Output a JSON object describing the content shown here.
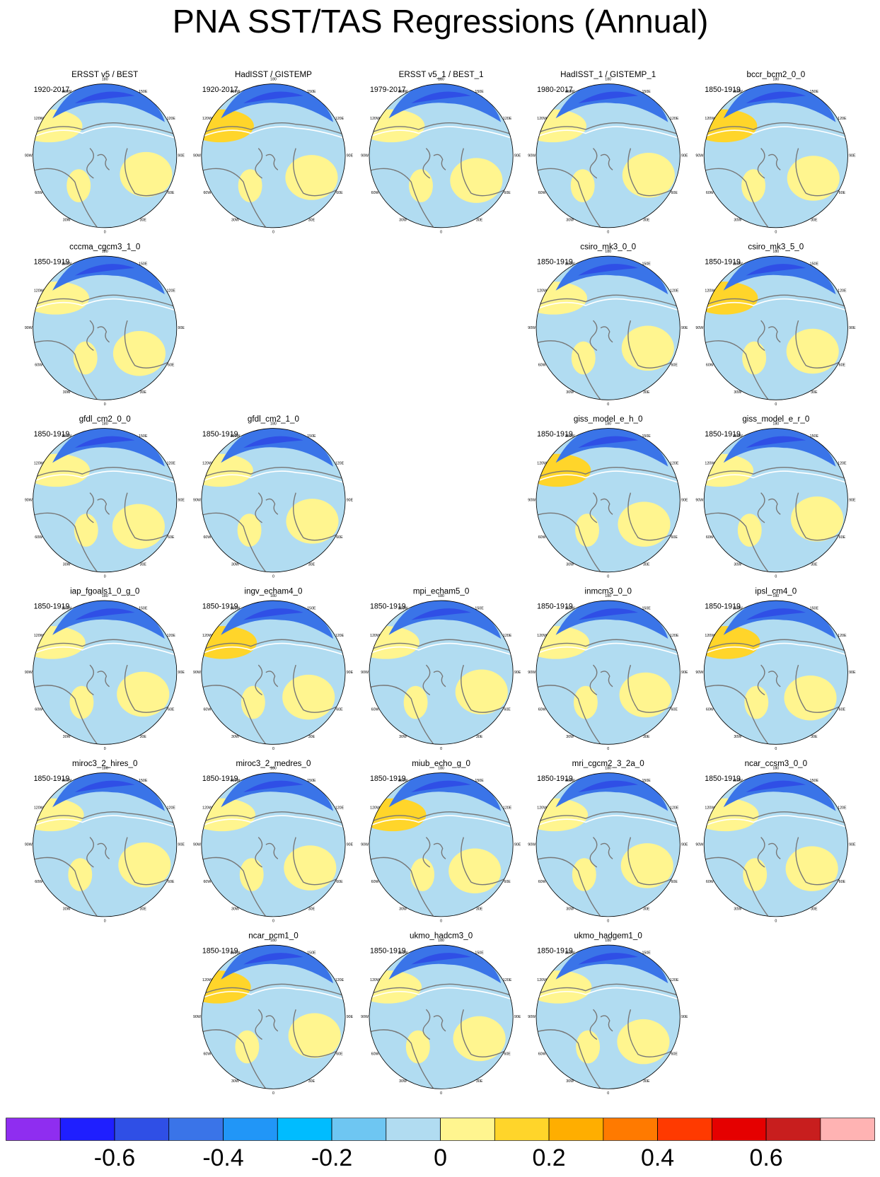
{
  "title": "PNA SST/TAS Regressions (Annual)",
  "lon_labels": [
    "180",
    "150E",
    "120E",
    "90E",
    "60E",
    "30E",
    "0",
    "30W",
    "60W",
    "90W",
    "120W",
    "150W"
  ],
  "panels": [
    {
      "name": "ERSST v5 / BEST",
      "period": "1920-2017"
    },
    {
      "name": "HadISST / GISTEMP",
      "period": "1920-2017"
    },
    {
      "name": "ERSST v5_1 / BEST_1",
      "period": "1979-2017"
    },
    {
      "name": "HadISST_1 / GISTEMP_1",
      "period": "1980-2017"
    },
    {
      "name": "bccr_bcm2_0_0",
      "period": "1850-1919"
    },
    {
      "name": "cccma_cgcm3_1_0",
      "period": "1850-1919"
    },
    {
      "name": "csiro_mk3_0_0",
      "period": "1850-1919"
    },
    {
      "name": "csiro_mk3_5_0",
      "period": "1850-1919"
    },
    {
      "name": "gfdl_cm2_0_0",
      "period": "1850-1919"
    },
    {
      "name": "gfdl_cm2_1_0",
      "period": "1850-1919"
    },
    {
      "name": "giss_model_e_h_0",
      "period": "1850-1919"
    },
    {
      "name": "giss_model_e_r_0",
      "period": "1850-1919"
    },
    {
      "name": "iap_fgoals1_0_g_0",
      "period": "1850-1919"
    },
    {
      "name": "ingv_echam4_0",
      "period": "1850-1919"
    },
    {
      "name": "mpi_echam5_0",
      "period": "1850-1919"
    },
    {
      "name": "inmcm3_0_0",
      "period": "1850-1919"
    },
    {
      "name": "ipsl_cm4_0",
      "period": "1850-1919"
    },
    {
      "name": "miroc3_2_hires_0",
      "period": "1850-1919"
    },
    {
      "name": "miroc3_2_medres_0",
      "period": "1850-1919"
    },
    {
      "name": "miub_echo_g_0",
      "period": "1850-1919"
    },
    {
      "name": "mri_cgcm2_3_2a_0",
      "period": "1850-1919"
    },
    {
      "name": "ncar_ccsm3_0_0",
      "period": "1850-1919"
    },
    {
      "name": "ncar_pcm1_0",
      "period": "1850-1919"
    },
    {
      "name": "ukmo_hadcm3_0",
      "period": "1850-1919"
    },
    {
      "name": "ukmo_hadgem1_0",
      "period": "1850-1919"
    }
  ],
  "colorbar": {
    "colors": [
      "#8f2df0",
      "#1f1fff",
      "#2f4fe6",
      "#3a74e8",
      "#2196f7",
      "#00bcff",
      "#6ec6f2",
      "#b1dcf1",
      "#fff58f",
      "#ffd52a",
      "#ffae00",
      "#ff7a00",
      "#ff3a00",
      "#e50000",
      "#c81e1e",
      "#ffb3b3"
    ],
    "levels": [
      -0.7,
      -0.6,
      -0.5,
      -0.4,
      -0.3,
      -0.2,
      -0.1,
      0,
      0.1,
      0.2,
      0.3,
      0.4,
      0.5,
      0.6,
      0.7
    ],
    "ticks": [
      -0.6,
      -0.4,
      -0.2,
      0,
      0.2,
      0.4,
      0.6
    ]
  }
}
